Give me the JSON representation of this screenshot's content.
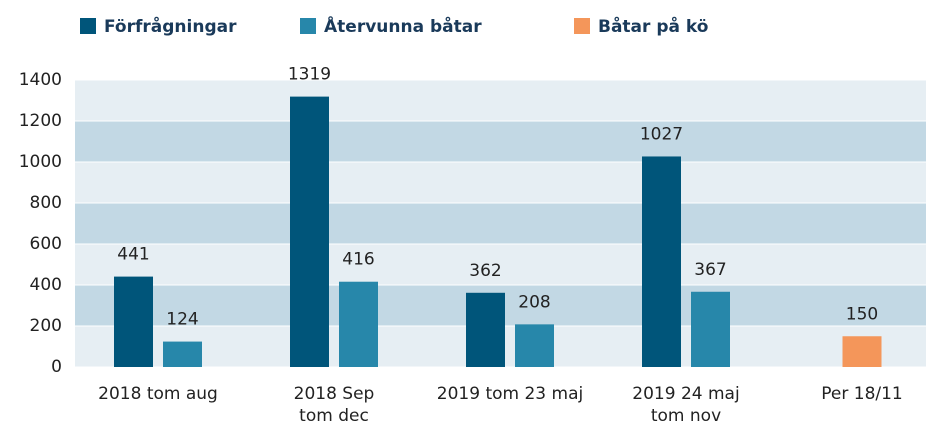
{
  "chart_data": {
    "type": "bar",
    "categories": [
      "2018 tom aug",
      "2018 Sep\ntom dec",
      "2019 tom 23 maj",
      "2019 24 maj\ntom nov",
      "Per 18/11"
    ],
    "series": [
      {
        "name": "Förfrågningar",
        "color": "#00557a",
        "values": [
          441,
          1319,
          362,
          1027,
          null
        ]
      },
      {
        "name": "Återvunna båtar",
        "color": "#2787aa",
        "values": [
          124,
          416,
          208,
          367,
          null
        ]
      },
      {
        "name": "Båtar på kö",
        "color": "#f4965a",
        "values": [
          null,
          null,
          null,
          null,
          150
        ]
      }
    ],
    "ylim": [
      0,
      1400
    ],
    "yticks": [
      0,
      200,
      400,
      600,
      800,
      1000,
      1200,
      1400
    ],
    "grid": true,
    "legend": "top"
  }
}
